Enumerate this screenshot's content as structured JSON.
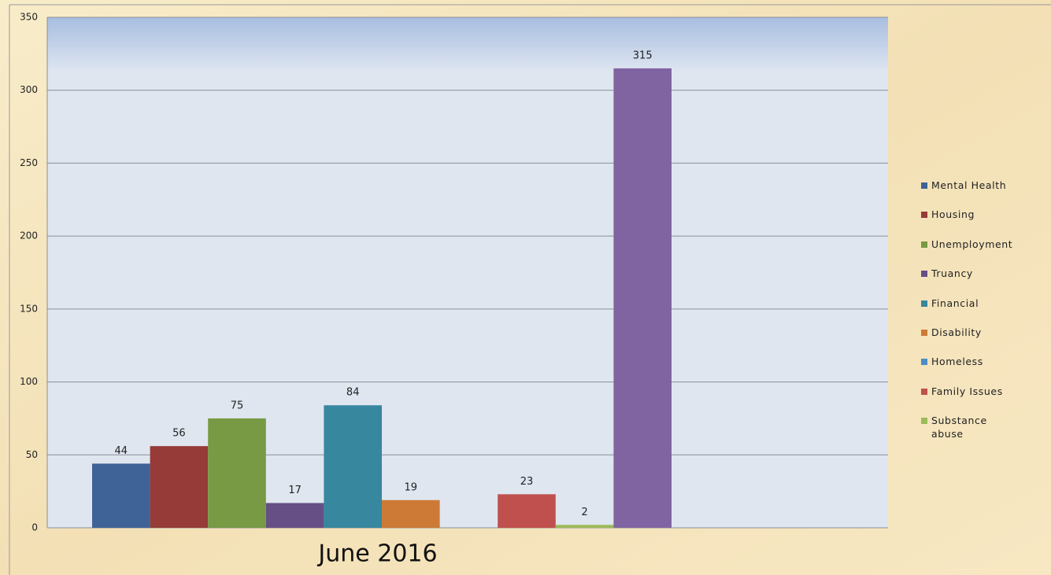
{
  "chart_data": {
    "type": "bar",
    "categories": [
      "June 2016"
    ],
    "series": [
      {
        "name": "Mental Health",
        "color": "#3f6397",
        "values": [
          44
        ]
      },
      {
        "name": "Housing",
        "color": "#963b37",
        "values": [
          56
        ]
      },
      {
        "name": "Unemployment",
        "color": "#789a44",
        "values": [
          75
        ]
      },
      {
        "name": "Truancy",
        "color": "#664f85",
        "values": [
          17
        ]
      },
      {
        "name": "Financial",
        "color": "#37879f",
        "values": [
          84
        ]
      },
      {
        "name": "Disability",
        "color": "#cc7a36",
        "values": [
          19
        ]
      },
      {
        "name": "Homeless",
        "color": "#4a8ec5",
        "values": [
          null
        ]
      },
      {
        "name": "Family Issues",
        "color": "#c0504d",
        "values": [
          23
        ]
      },
      {
        "name": "Substance abuse",
        "color": "#9bbb59",
        "values": [
          2
        ]
      },
      {
        "color": "#8064a2",
        "values": [
          315
        ]
      }
    ],
    "ylim": [
      0,
      350
    ],
    "yticks": [
      0,
      50,
      100,
      150,
      200,
      250,
      300,
      350
    ],
    "grid": true,
    "legend": "right"
  }
}
